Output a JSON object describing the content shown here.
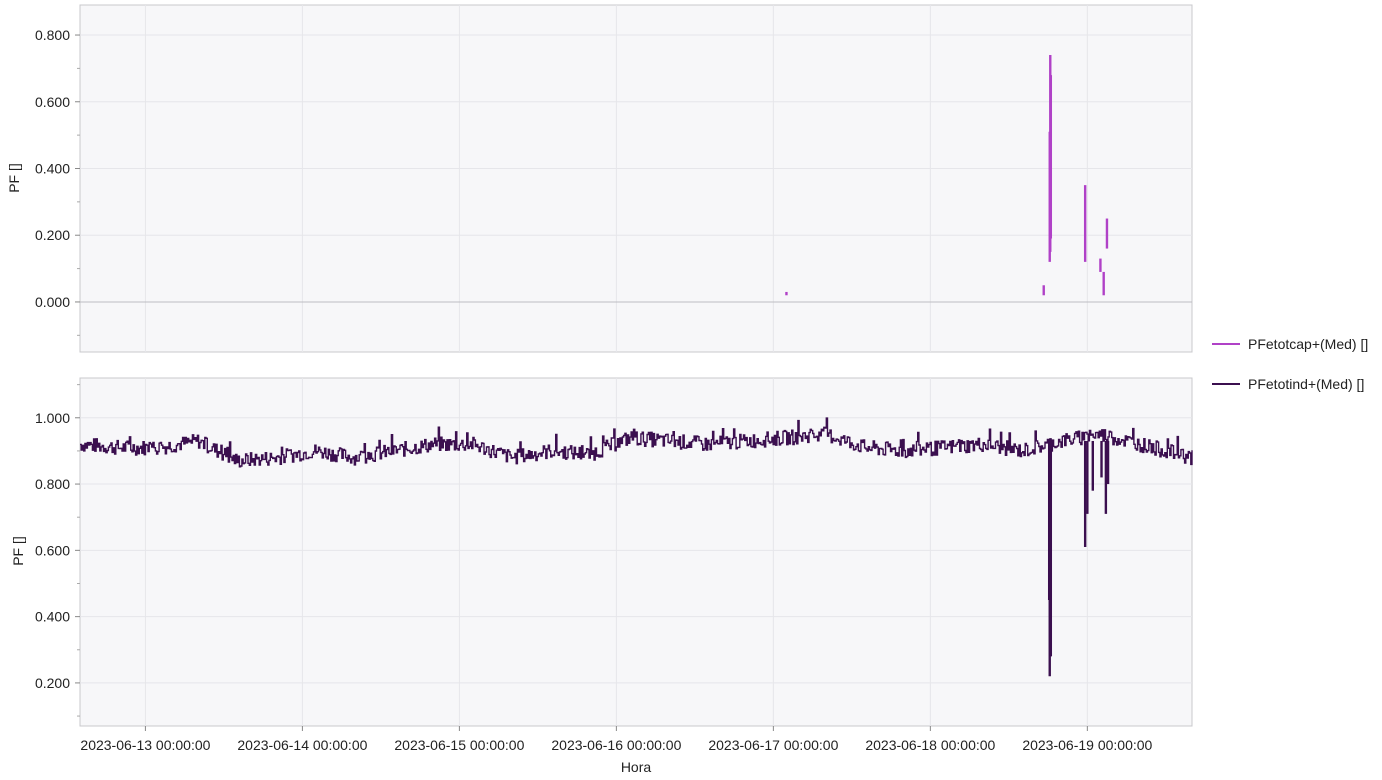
{
  "chart_data": [
    {
      "type": "line",
      "ylabel": "PF []",
      "ylim": [
        -0.15,
        0.89
      ],
      "yticks": [
        0.0,
        0.2,
        0.4,
        0.6,
        0.8
      ],
      "ytick_labels": [
        "0.000",
        "0.200",
        "0.400",
        "0.600",
        "0.800"
      ],
      "xlim": [
        "2023-06-12 14:00:00",
        "2023-06-19 16:00:00"
      ],
      "grid": true,
      "zero_line": true,
      "series": [
        {
          "name": "PFetotcap+(Med) []",
          "color": "#b041c7",
          "segments": [
            {
              "x": "2023-06-17 02:00:00",
              "y": [
                0.02,
                0.03
              ]
            },
            {
              "x": "2023-06-18 17:20:00",
              "y": [
                0.02,
                0.05
              ]
            },
            {
              "x": "2023-06-18 18:15:00",
              "y": [
                0.12,
                0.51
              ]
            },
            {
              "x": "2023-06-18 18:20:00",
              "y": [
                0.15,
                0.74
              ]
            },
            {
              "x": "2023-06-18 18:25:00",
              "y": [
                0.19,
                0.68
              ]
            },
            {
              "x": "2023-06-18 23:40:00",
              "y": [
                0.12,
                0.35
              ]
            },
            {
              "x": "2023-06-19 02:00:00",
              "y": [
                0.09,
                0.13
              ]
            },
            {
              "x": "2023-06-19 02:30:00",
              "y": [
                0.02,
                0.09
              ]
            },
            {
              "x": "2023-06-19 03:00:00",
              "y": [
                0.16,
                0.25
              ]
            }
          ]
        }
      ]
    },
    {
      "type": "line",
      "ylabel": "PF []",
      "xlabel": "Hora",
      "ylim": [
        0.07,
        1.12
      ],
      "yticks": [
        0.2,
        0.4,
        0.6,
        0.8,
        1.0
      ],
      "ytick_labels": [
        "0.200",
        "0.400",
        "0.600",
        "0.800",
        "1.000"
      ],
      "xlim": [
        "2023-06-12 14:00:00",
        "2023-06-19 16:00:00"
      ],
      "xticks": [
        "2023-06-13 00:00:00",
        "2023-06-14 00:00:00",
        "2023-06-15 00:00:00",
        "2023-06-16 00:00:00",
        "2023-06-17 00:00:00",
        "2023-06-18 00:00:00",
        "2023-06-19 00:00:00"
      ],
      "grid": true,
      "series": [
        {
          "name": "PFetotind+(Med) []",
          "color": "#3b0f4f",
          "x": [
            "2023-06-12 14:00:00",
            "2023-06-12 20:00:00",
            "2023-06-13 02:00:00",
            "2023-06-13 08:00:00",
            "2023-06-13 14:00:00",
            "2023-06-13 20:00:00",
            "2023-06-14 02:00:00",
            "2023-06-14 08:00:00",
            "2023-06-14 14:00:00",
            "2023-06-14 20:00:00",
            "2023-06-15 02:00:00",
            "2023-06-15 08:00:00",
            "2023-06-15 14:00:00",
            "2023-06-15 20:00:00",
            "2023-06-16 02:00:00",
            "2023-06-16 08:00:00",
            "2023-06-16 14:00:00",
            "2023-06-16 20:00:00",
            "2023-06-17 02:00:00",
            "2023-06-17 08:00:00",
            "2023-06-17 14:00:00",
            "2023-06-17 20:00:00",
            "2023-06-18 02:00:00",
            "2023-06-18 08:00:00",
            "2023-06-18 14:00:00",
            "2023-06-18 20:00:00",
            "2023-06-19 02:00:00",
            "2023-06-19 08:00:00",
            "2023-06-19 16:00:00"
          ],
          "y": [
            0.92,
            0.91,
            0.91,
            0.93,
            0.87,
            0.88,
            0.9,
            0.88,
            0.9,
            0.92,
            0.92,
            0.88,
            0.9,
            0.89,
            0.94,
            0.93,
            0.92,
            0.93,
            0.94,
            0.95,
            0.91,
            0.9,
            0.91,
            0.92,
            0.9,
            0.93,
            0.95,
            0.92,
            0.88
          ],
          "dips": [
            {
              "x": "2023-06-18 18:10:00",
              "y": 0.45
            },
            {
              "x": "2023-06-18 18:15:00",
              "y": 0.22
            },
            {
              "x": "2023-06-18 18:25:00",
              "y": 0.28
            },
            {
              "x": "2023-06-18 23:40:00",
              "y": 0.61
            },
            {
              "x": "2023-06-19 00:00:00",
              "y": 0.71
            },
            {
              "x": "2023-06-19 00:50:00",
              "y": 0.78
            },
            {
              "x": "2023-06-19 02:10:00",
              "y": 0.82
            },
            {
              "x": "2023-06-19 02:50:00",
              "y": 0.71
            },
            {
              "x": "2023-06-19 03:10:00",
              "y": 0.8
            }
          ]
        }
      ]
    }
  ],
  "legend": [
    {
      "label": "PFetotcap+(Med) []",
      "color": "#b041c7"
    },
    {
      "label": "PFetotind+(Med) []",
      "color": "#3b0f4f"
    }
  ]
}
